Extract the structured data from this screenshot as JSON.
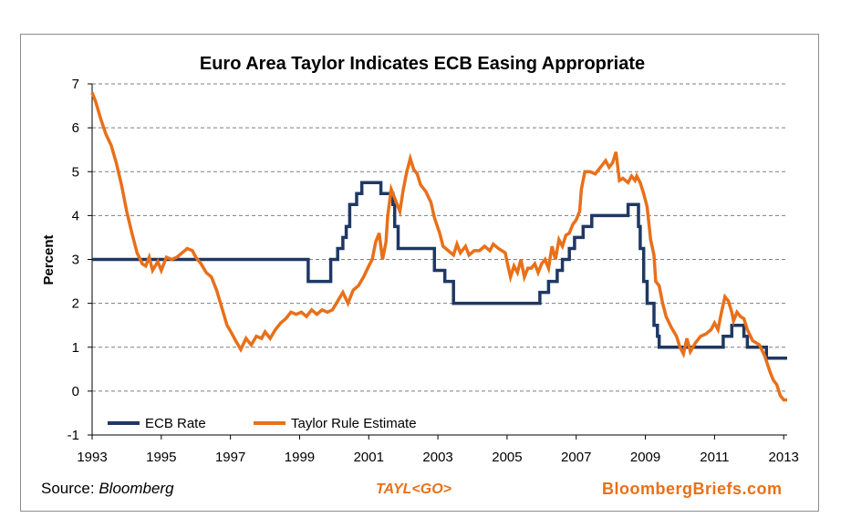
{
  "chart_data": {
    "type": "line",
    "title": "Euro Area Taylor Indicates ECB Easing Appropriate",
    "xlabel": "",
    "ylabel": "Percent",
    "xlim": [
      1993,
      2013.1
    ],
    "ylim": [
      -1,
      7
    ],
    "x_ticks": [
      1993,
      1995,
      1997,
      1999,
      2001,
      2003,
      2005,
      2007,
      2009,
      2011,
      2013
    ],
    "y_ticks": [
      -1,
      0,
      1,
      2,
      3,
      4,
      5,
      6,
      7
    ],
    "grid": "horizontal dashed",
    "legend_position": "bottom-left",
    "series": [
      {
        "name": "ECB Rate",
        "color": "#1f3864",
        "points": [
          [
            1993,
            3
          ],
          [
            1999.25,
            3
          ],
          [
            1999.25,
            2.5
          ],
          [
            1999.9,
            2.5
          ],
          [
            1999.9,
            3
          ],
          [
            2000.1,
            3
          ],
          [
            2000.1,
            3.25
          ],
          [
            2000.25,
            3.25
          ],
          [
            2000.25,
            3.5
          ],
          [
            2000.35,
            3.5
          ],
          [
            2000.35,
            3.75
          ],
          [
            2000.45,
            3.75
          ],
          [
            2000.45,
            4.25
          ],
          [
            2000.65,
            4.25
          ],
          [
            2000.65,
            4.5
          ],
          [
            2000.8,
            4.5
          ],
          [
            2000.8,
            4.75
          ],
          [
            2001.35,
            4.75
          ],
          [
            2001.35,
            4.5
          ],
          [
            2001.7,
            4.5
          ],
          [
            2001.7,
            4.25
          ],
          [
            2001.75,
            4.25
          ],
          [
            2001.75,
            3.75
          ],
          [
            2001.85,
            3.75
          ],
          [
            2001.85,
            3.25
          ],
          [
            2002.9,
            3.25
          ],
          [
            2002.9,
            2.75
          ],
          [
            2003.2,
            2.75
          ],
          [
            2003.2,
            2.5
          ],
          [
            2003.45,
            2.5
          ],
          [
            2003.45,
            2
          ],
          [
            2005.95,
            2
          ],
          [
            2005.95,
            2.25
          ],
          [
            2006.2,
            2.25
          ],
          [
            2006.2,
            2.5
          ],
          [
            2006.45,
            2.5
          ],
          [
            2006.45,
            2.75
          ],
          [
            2006.6,
            2.75
          ],
          [
            2006.6,
            3
          ],
          [
            2006.8,
            3
          ],
          [
            2006.8,
            3.25
          ],
          [
            2006.95,
            3.25
          ],
          [
            2006.95,
            3.5
          ],
          [
            2007.2,
            3.5
          ],
          [
            2007.2,
            3.75
          ],
          [
            2007.45,
            3.75
          ],
          [
            2007.45,
            4
          ],
          [
            2008.5,
            4
          ],
          [
            2008.5,
            4.25
          ],
          [
            2008.8,
            4.25
          ],
          [
            2008.8,
            3.75
          ],
          [
            2008.85,
            3.75
          ],
          [
            2008.85,
            3.25
          ],
          [
            2008.95,
            3.25
          ],
          [
            2008.95,
            2.5
          ],
          [
            2009.05,
            2.5
          ],
          [
            2009.05,
            2
          ],
          [
            2009.25,
            2
          ],
          [
            2009.25,
            1.5
          ],
          [
            2009.35,
            1.5
          ],
          [
            2009.35,
            1.25
          ],
          [
            2009.4,
            1.25
          ],
          [
            2009.4,
            1
          ],
          [
            2011.25,
            1
          ],
          [
            2011.25,
            1.25
          ],
          [
            2011.5,
            1.25
          ],
          [
            2011.5,
            1.5
          ],
          [
            2011.85,
            1.5
          ],
          [
            2011.85,
            1.25
          ],
          [
            2011.95,
            1.25
          ],
          [
            2011.95,
            1
          ],
          [
            2012.5,
            1
          ],
          [
            2012.5,
            0.75
          ],
          [
            2013.1,
            0.75
          ]
        ]
      },
      {
        "name": "Taylor Rule Estimate",
        "color": "#e8701a",
        "points": [
          [
            1993,
            6.8
          ],
          [
            1993.1,
            6.6
          ],
          [
            1993.25,
            6.2
          ],
          [
            1993.4,
            5.85
          ],
          [
            1993.55,
            5.6
          ],
          [
            1993.7,
            5.2
          ],
          [
            1993.85,
            4.7
          ],
          [
            1994,
            4.1
          ],
          [
            1994.15,
            3.6
          ],
          [
            1994.3,
            3.15
          ],
          [
            1994.45,
            2.9
          ],
          [
            1994.55,
            2.85
          ],
          [
            1994.65,
            3.05
          ],
          [
            1994.75,
            2.75
          ],
          [
            1994.9,
            2.95
          ],
          [
            1995,
            2.75
          ],
          [
            1995.15,
            3.05
          ],
          [
            1995.3,
            3.0
          ],
          [
            1995.45,
            3.05
          ],
          [
            1995.6,
            3.15
          ],
          [
            1995.75,
            3.25
          ],
          [
            1995.9,
            3.2
          ],
          [
            1996,
            3.05
          ],
          [
            1996.15,
            2.9
          ],
          [
            1996.3,
            2.7
          ],
          [
            1996.45,
            2.6
          ],
          [
            1996.6,
            2.3
          ],
          [
            1996.75,
            1.9
          ],
          [
            1996.9,
            1.5
          ],
          [
            1997.05,
            1.3
          ],
          [
            1997.15,
            1.15
          ],
          [
            1997.3,
            0.95
          ],
          [
            1997.45,
            1.2
          ],
          [
            1997.6,
            1.05
          ],
          [
            1997.75,
            1.25
          ],
          [
            1997.9,
            1.2
          ],
          [
            1998,
            1.35
          ],
          [
            1998.15,
            1.2
          ],
          [
            1998.3,
            1.4
          ],
          [
            1998.45,
            1.55
          ],
          [
            1998.6,
            1.65
          ],
          [
            1998.75,
            1.8
          ],
          [
            1998.9,
            1.75
          ],
          [
            1999.05,
            1.8
          ],
          [
            1999.2,
            1.7
          ],
          [
            1999.35,
            1.85
          ],
          [
            1999.5,
            1.75
          ],
          [
            1999.65,
            1.85
          ],
          [
            1999.8,
            1.8
          ],
          [
            1999.95,
            1.85
          ],
          [
            2000.1,
            2.05
          ],
          [
            2000.25,
            2.25
          ],
          [
            2000.4,
            2.0
          ],
          [
            2000.55,
            2.3
          ],
          [
            2000.7,
            2.4
          ],
          [
            2000.85,
            2.6
          ],
          [
            2001,
            2.85
          ],
          [
            2001.1,
            3.0
          ],
          [
            2001.2,
            3.4
          ],
          [
            2001.3,
            3.6
          ],
          [
            2001.4,
            3.0
          ],
          [
            2001.5,
            3.4
          ],
          [
            2001.55,
            4.0
          ],
          [
            2001.65,
            4.6
          ],
          [
            2001.75,
            4.4
          ],
          [
            2001.9,
            4.1
          ],
          [
            2002,
            4.6
          ],
          [
            2002.1,
            5.0
          ],
          [
            2002.2,
            5.3
          ],
          [
            2002.3,
            5.05
          ],
          [
            2002.4,
            4.95
          ],
          [
            2002.5,
            4.7
          ],
          [
            2002.65,
            4.55
          ],
          [
            2002.8,
            4.3
          ],
          [
            2002.9,
            3.95
          ],
          [
            2003.05,
            3.6
          ],
          [
            2003.15,
            3.3
          ],
          [
            2003.3,
            3.2
          ],
          [
            2003.45,
            3.1
          ],
          [
            2003.55,
            3.35
          ],
          [
            2003.65,
            3.15
          ],
          [
            2003.8,
            3.3
          ],
          [
            2003.9,
            3.1
          ],
          [
            2004.05,
            3.2
          ],
          [
            2004.2,
            3.2
          ],
          [
            2004.35,
            3.3
          ],
          [
            2004.5,
            3.2
          ],
          [
            2004.6,
            3.35
          ],
          [
            2004.75,
            3.25
          ],
          [
            2004.85,
            3.2
          ],
          [
            2004.95,
            3.15
          ],
          [
            2005,
            2.95
          ],
          [
            2005.1,
            2.6
          ],
          [
            2005.2,
            2.85
          ],
          [
            2005.3,
            2.7
          ],
          [
            2005.4,
            3.0
          ],
          [
            2005.5,
            2.6
          ],
          [
            2005.6,
            2.8
          ],
          [
            2005.7,
            2.8
          ],
          [
            2005.8,
            2.9
          ],
          [
            2005.9,
            2.7
          ],
          [
            2006,
            2.9
          ],
          [
            2006.1,
            3.0
          ],
          [
            2006.2,
            2.8
          ],
          [
            2006.3,
            3.3
          ],
          [
            2006.4,
            3.0
          ],
          [
            2006.5,
            3.45
          ],
          [
            2006.6,
            3.3
          ],
          [
            2006.7,
            3.55
          ],
          [
            2006.8,
            3.6
          ],
          [
            2006.9,
            3.8
          ],
          [
            2007,
            3.9
          ],
          [
            2007.1,
            4.1
          ],
          [
            2007.15,
            4.6
          ],
          [
            2007.25,
            5.0
          ],
          [
            2007.4,
            5.0
          ],
          [
            2007.55,
            4.95
          ],
          [
            2007.7,
            5.1
          ],
          [
            2007.85,
            5.25
          ],
          [
            2007.95,
            5.1
          ],
          [
            2008.05,
            5.2
          ],
          [
            2008.15,
            5.45
          ],
          [
            2008.25,
            4.8
          ],
          [
            2008.35,
            4.85
          ],
          [
            2008.5,
            4.75
          ],
          [
            2008.6,
            4.9
          ],
          [
            2008.7,
            4.8
          ],
          [
            2008.75,
            4.9
          ],
          [
            2008.85,
            4.75
          ],
          [
            2008.95,
            4.5
          ],
          [
            2009.05,
            4.2
          ],
          [
            2009.15,
            3.45
          ],
          [
            2009.25,
            3.1
          ],
          [
            2009.3,
            2.5
          ],
          [
            2009.4,
            2.4
          ],
          [
            2009.5,
            2.0
          ],
          [
            2009.6,
            1.7
          ],
          [
            2009.75,
            1.45
          ],
          [
            2009.9,
            1.25
          ],
          [
            2010,
            1.0
          ],
          [
            2010.1,
            0.85
          ],
          [
            2010.2,
            1.2
          ],
          [
            2010.3,
            0.9
          ],
          [
            2010.45,
            1.1
          ],
          [
            2010.6,
            1.25
          ],
          [
            2010.75,
            1.3
          ],
          [
            2010.9,
            1.4
          ],
          [
            2011,
            1.55
          ],
          [
            2011.1,
            1.4
          ],
          [
            2011.2,
            1.8
          ],
          [
            2011.3,
            2.15
          ],
          [
            2011.4,
            2.05
          ],
          [
            2011.5,
            1.8
          ],
          [
            2011.55,
            1.6
          ],
          [
            2011.65,
            1.8
          ],
          [
            2011.75,
            1.7
          ],
          [
            2011.85,
            1.65
          ],
          [
            2011.95,
            1.4
          ],
          [
            2012.1,
            1.15
          ],
          [
            2012.3,
            1.05
          ],
          [
            2012.45,
            0.8
          ],
          [
            2012.6,
            0.45
          ],
          [
            2012.7,
            0.25
          ],
          [
            2012.8,
            0.15
          ],
          [
            2012.9,
            -0.1
          ],
          [
            2013.0,
            -0.2
          ],
          [
            2013.1,
            -0.2
          ]
        ]
      }
    ]
  },
  "footer": {
    "source_prefix": "Source:",
    "source_name": "Bloomberg",
    "command": "TAYL<GO>",
    "brand": "BloombergBriefs.com"
  }
}
